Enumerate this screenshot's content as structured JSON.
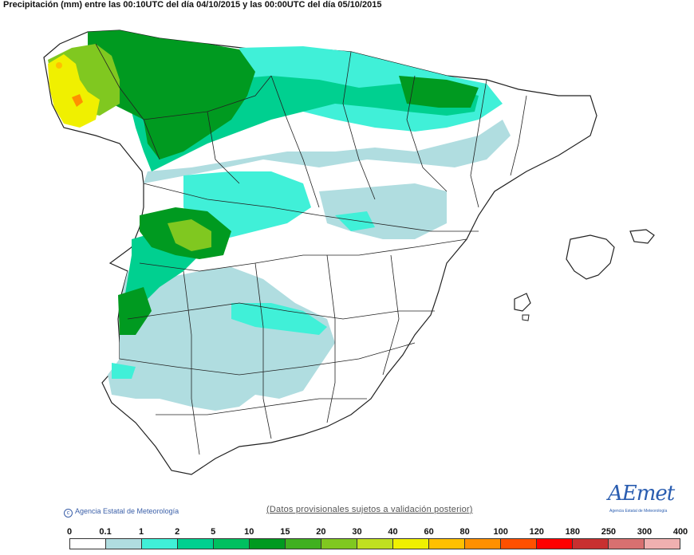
{
  "title": "Precipitación (mm) entre las 00:10UTC del día 04/10/2015 y las 00:00UTC del día 05/10/2015",
  "copyright": "Agencia Estatal de Meteorología",
  "disclaimer": "(Datos provisionales sujetos a validación posterior)",
  "logo": {
    "text": "AEmet",
    "subtitle": "Agencia Estatal de Meteorología"
  },
  "legend": {
    "labels": [
      "0",
      "0.1",
      "1",
      "2",
      "5",
      "10",
      "15",
      "20",
      "30",
      "40",
      "60",
      "80",
      "100",
      "120",
      "180",
      "250",
      "300",
      "400"
    ],
    "colors": [
      "#ffffff",
      "#b0dde0",
      "#40f0d8",
      "#00d090",
      "#00c060",
      "#009a20",
      "#40b020",
      "#80c820",
      "#c0e020",
      "#f0f000",
      "#ffc000",
      "#ff9000",
      "#ff5000",
      "#ff0000",
      "#c83030",
      "#d87070",
      "#f0b0b0"
    ]
  },
  "map": {
    "regions": [
      "Galicia (highest rainfall)",
      "Spain peninsula",
      "Baleares"
    ]
  }
}
